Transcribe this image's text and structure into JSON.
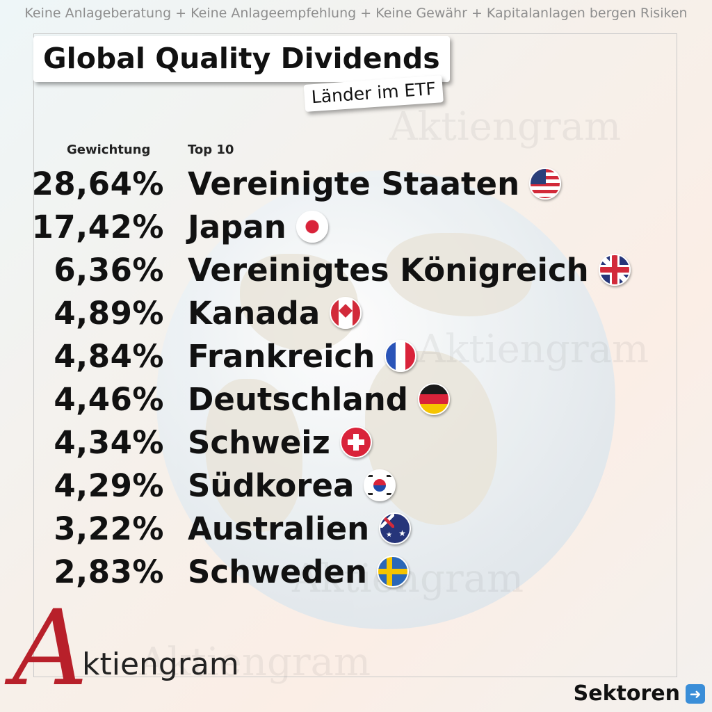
{
  "disclaimer": "Keine Anlageberatung + Keine Anlageempfehlung + Keine Gewähr + Kapitalanlagen bergen Risiken",
  "title": "Global Quality Dividends",
  "subtitle": "Länder im ETF",
  "headers": {
    "weight": "Gewichtung",
    "top": "Top 10"
  },
  "rows": [
    {
      "pct": "28,64%",
      "country": "Vereinigte Staaten",
      "flag": "us-flag-icon"
    },
    {
      "pct": "17,42%",
      "country": "Japan",
      "flag": "jp-flag-icon"
    },
    {
      "pct": "6,36%",
      "country": "Vereinigtes Königreich",
      "flag": "gb-flag-icon"
    },
    {
      "pct": "4,89%",
      "country": "Kanada",
      "flag": "ca-flag-icon"
    },
    {
      "pct": "4,84%",
      "country": "Frankreich",
      "flag": "fr-flag-icon"
    },
    {
      "pct": "4,46%",
      "country": "Deutschland",
      "flag": "de-flag-icon"
    },
    {
      "pct": "4,34%",
      "country": "Schweiz",
      "flag": "ch-flag-icon"
    },
    {
      "pct": "4,29%",
      "country": "Südkorea",
      "flag": "kr-flag-icon"
    },
    {
      "pct": "3,22%",
      "country": "Australien",
      "flag": "au-flag-icon"
    },
    {
      "pct": "2,83%",
      "country": "Schweden",
      "flag": "se-flag-icon"
    }
  ],
  "brand": {
    "mark": "A",
    "text": "ktiengram",
    "color": "#b8202a"
  },
  "nav": {
    "next_label": "Sektoren",
    "icon": "arrow-right-icon"
  }
}
